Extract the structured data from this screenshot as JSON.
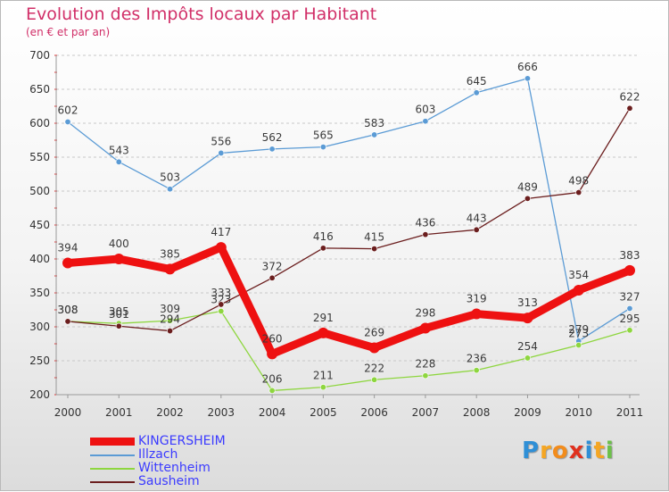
{
  "title": "Evolution des Impôts locaux par Habitant",
  "subtitle": "(en € et par an)",
  "chart_data": {
    "type": "line",
    "title": "Evolution des Impôts locaux par Habitant",
    "subtitle": "(en € et par an)",
    "xlabel": "",
    "ylabel": "",
    "ylim": [
      200,
      700
    ],
    "yticks": [
      200,
      250,
      300,
      350,
      400,
      450,
      500,
      550,
      600,
      650,
      700
    ],
    "x": [
      "2000",
      "2001",
      "2002",
      "2003",
      "2004",
      "2005",
      "2006",
      "2007",
      "2008",
      "2009",
      "2010",
      "2011"
    ],
    "grid": "horizontal dashed",
    "legend_position": "bottom-left",
    "series": [
      {
        "name": "Illzach",
        "color": "#5b9bd5",
        "values": [
          602,
          543,
          503,
          556,
          562,
          565,
          583,
          603,
          645,
          666,
          279,
          327
        ]
      },
      {
        "name": "Wittenheim",
        "color": "#8ed63f",
        "values": [
          308,
          305,
          309,
          323,
          206,
          211,
          222,
          228,
          236,
          254,
          273,
          295
        ]
      },
      {
        "name": "Sausheim",
        "color": "#6b1e1e",
        "values": [
          308,
          301,
          294,
          333,
          372,
          416,
          415,
          436,
          443,
          489,
          498,
          622
        ]
      },
      {
        "name": "KINGERSHEIM",
        "color": "#ee1111",
        "values": [
          394,
          400,
          385,
          417,
          260,
          291,
          269,
          298,
          319,
          313,
          354,
          383
        ]
      }
    ],
    "legend_order": [
      "KINGERSHEIM",
      "Illzach",
      "Wittenheim",
      "Sausheim"
    ]
  },
  "legend": {
    "items": [
      {
        "label": "KINGERSHEIM",
        "color": "#ee1111",
        "label_color": "#3b3bff",
        "thick": true
      },
      {
        "label": "Illzach",
        "color": "#5b9bd5",
        "label_color": "#3b3bff",
        "thick": false
      },
      {
        "label": "Wittenheim",
        "color": "#8ed63f",
        "label_color": "#3b3bff",
        "thick": false
      },
      {
        "label": "Sausheim",
        "color": "#6b1e1e",
        "label_color": "#3b3bff",
        "thick": false
      }
    ]
  },
  "logo": {
    "letters": [
      {
        "ch": "P",
        "color": "#2f8fd6"
      },
      {
        "ch": "r",
        "color": "#f5a623"
      },
      {
        "ch": "o",
        "color": "#f28c1c"
      },
      {
        "ch": "x",
        "color": "#e0301e"
      },
      {
        "ch": "i",
        "color": "#2f8fd6"
      },
      {
        "ch": "t",
        "color": "#f5a623"
      },
      {
        "ch": "i",
        "color": "#6cc04a"
      }
    ]
  }
}
